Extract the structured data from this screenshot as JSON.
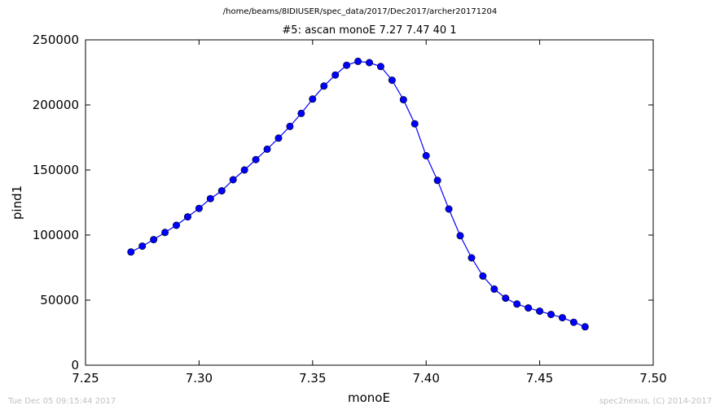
{
  "header": {
    "path": "/home/beams/8IDIUSER/spec_data/2017/Dec2017/archer20171204"
  },
  "footer": {
    "timestamp": "Tue Dec 05 09:15:44 2017",
    "credit": "spec2nexus, (C) 2014-2017"
  },
  "chart_data": {
    "type": "line",
    "title": "#5: ascan  monoE 7.27 7.47  40 1",
    "xlabel": "monoE",
    "ylabel": "pind1",
    "xlim": [
      7.25,
      7.5
    ],
    "ylim": [
      0,
      250000
    ],
    "xticks": [
      "7.25",
      "7.30",
      "7.35",
      "7.40",
      "7.45",
      "7.50"
    ],
    "yticks": [
      "0",
      "50000",
      "100000",
      "150000",
      "200000",
      "250000"
    ],
    "grid": false,
    "color": "#0000ff",
    "marker": "circle",
    "x": [
      7.27,
      7.275,
      7.28,
      7.285,
      7.29,
      7.295,
      7.3,
      7.305,
      7.31,
      7.315,
      7.32,
      7.325,
      7.33,
      7.335,
      7.34,
      7.345,
      7.35,
      7.355,
      7.36,
      7.365,
      7.37,
      7.375,
      7.38,
      7.385,
      7.39,
      7.395,
      7.4,
      7.405,
      7.41,
      7.415,
      7.42,
      7.425,
      7.43,
      7.435,
      7.44,
      7.445,
      7.45,
      7.455,
      7.46,
      7.465,
      7.47
    ],
    "y": [
      87000,
      91500,
      96500,
      102000,
      107500,
      114000,
      120500,
      128000,
      134000,
      142500,
      150000,
      158000,
      166000,
      174500,
      183500,
      193500,
      204500,
      214500,
      223000,
      230500,
      233500,
      232500,
      229500,
      219000,
      204000,
      185500,
      161000,
      142000,
      120000,
      99500,
      82500,
      68500,
      58500,
      51500,
      47000,
      44000,
      41500,
      39000,
      36500,
      33000,
      29500
    ]
  }
}
